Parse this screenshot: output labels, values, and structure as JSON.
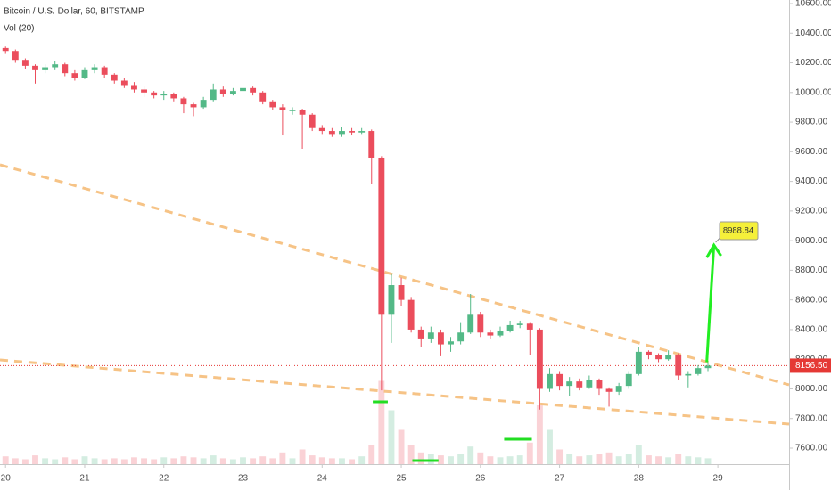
{
  "chart_data": {
    "type": "candlestick",
    "title": "Bitcoin / U.S. Dollar, 60, BITSTAMP",
    "subtitle": "Vol (20)",
    "x": [
      20,
      20.125,
      20.25,
      20.375,
      20.5,
      20.625,
      20.75,
      20.875,
      21,
      21.125,
      21.25,
      21.375,
      21.5,
      21.625,
      21.75,
      21.875,
      22,
      22.125,
      22.25,
      22.375,
      22.5,
      22.625,
      22.75,
      22.875,
      23,
      23.125,
      23.25,
      23.375,
      23.5,
      23.625,
      23.75,
      23.875,
      24,
      24.125,
      24.25,
      24.375,
      24.5,
      24.625,
      24.75,
      24.875,
      25,
      25.125,
      25.25,
      25.375,
      25.5,
      25.625,
      25.75,
      25.875,
      26,
      26.125,
      26.25,
      26.375,
      26.5,
      26.625,
      26.75,
      26.875,
      27,
      27.125,
      27.25,
      27.375,
      27.5,
      27.625,
      27.75,
      27.875,
      28,
      28.125,
      28.25,
      28.375,
      28.5,
      28.625,
      28.75,
      28.875
    ],
    "open": [
      10300,
      10280,
      10220,
      10180,
      10150,
      10170,
      10190,
      10130,
      10100,
      10150,
      10170,
      10120,
      10080,
      10050,
      10020,
      10000,
      9980,
      9990,
      9960,
      9920,
      9900,
      9950,
      10020,
      9990,
      10010,
      10030,
      10000,
      9940,
      9900,
      9880,
      9880,
      9850,
      9760,
      9740,
      9720,
      9740,
      9730,
      9740,
      9560,
      8500,
      8700,
      8600,
      8400,
      8340,
      8380,
      8300,
      8320,
      8380,
      8500,
      8380,
      8360,
      8390,
      8430,
      8440,
      8400,
      8000,
      8100,
      8020,
      8050,
      8010,
      8060,
      8000,
      7980,
      8020,
      8100,
      8250,
      8230,
      8200,
      8230,
      8090,
      8100,
      8140
    ],
    "high": [
      10310,
      10290,
      10230,
      10190,
      10190,
      10210,
      10200,
      10150,
      10170,
      10190,
      10180,
      10130,
      10100,
      10070,
      10040,
      10010,
      10010,
      10000,
      9970,
      9930,
      9970,
      10060,
      10040,
      10030,
      10090,
      10040,
      10010,
      9950,
      9920,
      9900,
      9890,
      9860,
      9780,
      9760,
      9770,
      9760,
      9760,
      9750,
      9570,
      8780,
      8750,
      8620,
      8420,
      8420,
      8400,
      8350,
      8450,
      8640,
      8520,
      8400,
      8420,
      8460,
      8460,
      8450,
      8410,
      8140,
      8120,
      8080,
      8070,
      8090,
      8070,
      8010,
      8040,
      8120,
      8280,
      8260,
      8240,
      8260,
      8240,
      8120,
      8160,
      8180
    ],
    "low": [
      10260,
      10200,
      10160,
      10060,
      10130,
      10150,
      10110,
      10080,
      10090,
      10130,
      10100,
      10060,
      10030,
      10000,
      9970,
      9960,
      9950,
      9940,
      9860,
      9840,
      9890,
      9940,
      9970,
      9980,
      10000,
      9980,
      9920,
      9880,
      9710,
      9850,
      9620,
      9740,
      9720,
      9700,
      9700,
      9710,
      9720,
      9380,
      7990,
      8310,
      8560,
      8380,
      8280,
      8310,
      8220,
      8250,
      8300,
      8370,
      8350,
      8340,
      8350,
      8380,
      8410,
      8230,
      7860,
      7980,
      7990,
      7950,
      7990,
      8000,
      7960,
      7880,
      7960,
      8000,
      8090,
      8200,
      8180,
      8190,
      8060,
      8010,
      8090,
      8120
    ],
    "close": [
      10280,
      10220,
      10180,
      10150,
      10170,
      10190,
      10130,
      10100,
      10150,
      10170,
      10120,
      10080,
      10050,
      10020,
      10000,
      9980,
      9990,
      9960,
      9920,
      9900,
      9950,
      10020,
      9990,
      10010,
      10030,
      10000,
      9940,
      9900,
      9880,
      9880,
      9850,
      9760,
      9740,
      9720,
      9740,
      9730,
      9740,
      9560,
      8500,
      8700,
      8600,
      8400,
      8340,
      8380,
      8300,
      8320,
      8380,
      8500,
      8380,
      8360,
      8390,
      8430,
      8440,
      8400,
      8000,
      8100,
      8020,
      8050,
      8010,
      8060,
      8000,
      7980,
      8020,
      8100,
      8250,
      8230,
      8200,
      8230,
      8090,
      8100,
      8140,
      8156.5
    ],
    "volume": [
      8,
      6,
      5,
      9,
      6,
      5,
      7,
      5,
      8,
      6,
      5,
      6,
      5,
      7,
      6,
      5,
      7,
      6,
      8,
      7,
      6,
      9,
      6,
      5,
      7,
      6,
      8,
      6,
      12,
      6,
      15,
      9,
      7,
      6,
      6,
      5,
      8,
      20,
      85,
      55,
      35,
      20,
      12,
      10,
      9,
      8,
      10,
      18,
      12,
      8,
      7,
      8,
      9,
      22,
      60,
      35,
      15,
      10,
      8,
      9,
      10,
      12,
      8,
      10,
      20,
      9,
      8,
      7,
      10,
      8,
      7,
      6
    ],
    "vlim": [
      0,
      100
    ],
    "up_color": "#53b987",
    "down_color": "#eb4d5c",
    "xlim": [
      19.93,
      29.9
    ],
    "xticks": [
      20,
      21,
      22,
      23,
      24,
      25,
      26,
      27,
      28,
      29
    ],
    "ylim": [
      7600,
      10600
    ],
    "yticks": [
      {
        "value": 7600,
        "label": "7600.00"
      },
      {
        "value": 7800,
        "label": "7800.00"
      },
      {
        "value": 8000,
        "label": "8000.00"
      },
      {
        "value": 8200,
        "label": "8200.00"
      },
      {
        "value": 8400,
        "label": "8400.00"
      },
      {
        "value": 8600,
        "label": "8600.00"
      },
      {
        "value": 8800,
        "label": "8800.00"
      },
      {
        "value": 9000,
        "label": "9000.00"
      },
      {
        "value": 9200,
        "label": "9200.00"
      },
      {
        "value": 9400,
        "label": "9400.00"
      },
      {
        "value": 9600,
        "label": "9600.00"
      },
      {
        "value": 9800,
        "label": "9800.00"
      },
      {
        "value": 10000,
        "label": "10000.00"
      },
      {
        "value": 10200,
        "label": "10200.00"
      },
      {
        "value": 10400,
        "label": "10400.00"
      },
      {
        "value": 10600,
        "label": "10600.00"
      }
    ],
    "last_price": {
      "value": 8156.5,
      "label": "8156.50"
    },
    "target": {
      "value": 8988.84,
      "label": "8988.84"
    },
    "trendlines": [
      {
        "x": [
          19.93,
          29.9
        ],
        "y": [
          9512,
          8027
        ]
      },
      {
        "x": [
          19.93,
          29.9
        ],
        "y": [
          8195,
          7762
        ]
      }
    ],
    "support_lines": [
      {
        "x": [
          24.64,
          24.83
        ],
        "y": [
          7913,
          7913
        ]
      },
      {
        "x": [
          25.14,
          25.47
        ],
        "y": [
          7516,
          7516
        ]
      },
      {
        "x": [
          26.3,
          26.65
        ],
        "y": [
          7660,
          7660
        ]
      }
    ],
    "arrow": {
      "x": [
        28.86,
        28.95
      ],
      "y": [
        8180,
        8970
      ]
    }
  }
}
